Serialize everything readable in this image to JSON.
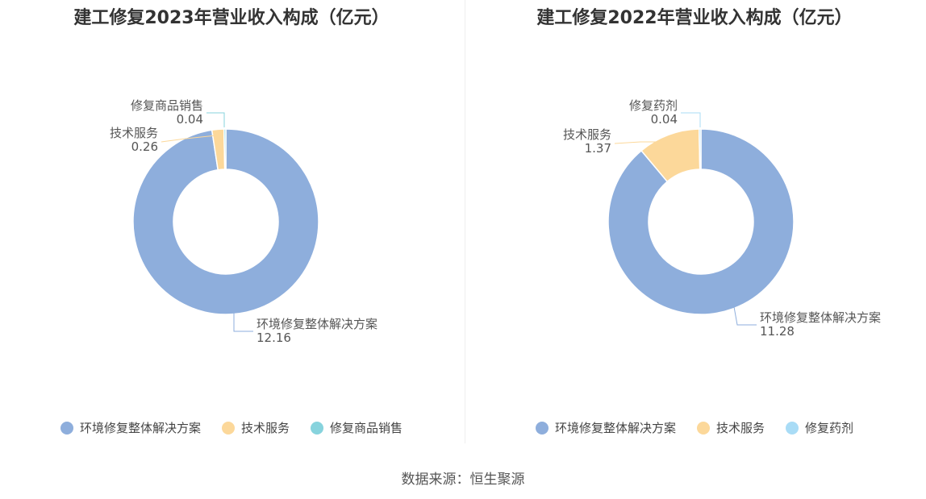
{
  "chart_data": [
    {
      "type": "pie",
      "title": "建工修复2023年营业收入构成（亿元）",
      "categories": [
        "环境修复整体解决方案",
        "技术服务",
        "修复商品销售"
      ],
      "values": [
        12.16,
        0.26,
        0.04
      ],
      "value_labels": [
        "12.16",
        "0.26",
        "0.04"
      ],
      "colors": [
        "#8eaedc",
        "#fcd89a",
        "#87d3dd"
      ],
      "legend_position": "bottom"
    },
    {
      "type": "pie",
      "title": "建工修复2022年营业收入构成（亿元）",
      "categories": [
        "环境修复整体解决方案",
        "技术服务",
        "修复药剂"
      ],
      "values": [
        11.28,
        1.37,
        0.04
      ],
      "value_labels": [
        "11.28",
        "1.37",
        "0.04"
      ],
      "colors": [
        "#8eaedc",
        "#fcd89a",
        "#a9dcf6"
      ],
      "legend_position": "bottom"
    }
  ],
  "footer": {
    "source": "数据来源：恒生聚源"
  }
}
